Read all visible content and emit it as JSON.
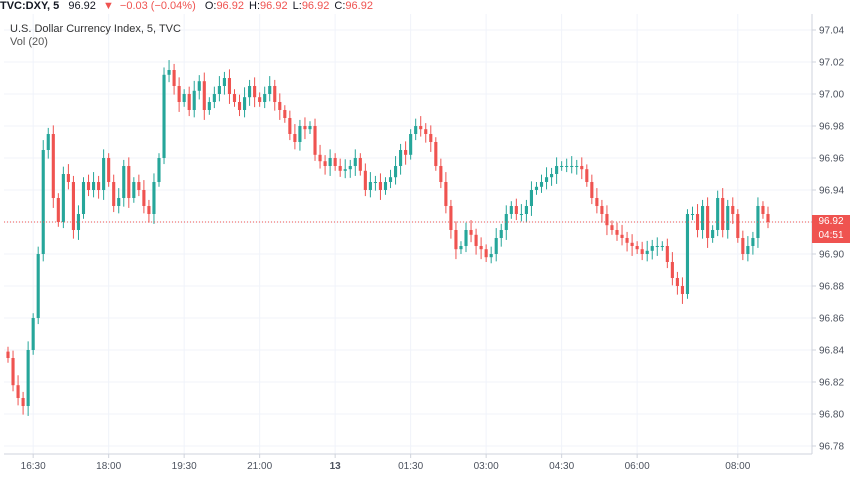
{
  "header": {
    "symbol": "TVC:DXY, 5",
    "last": "96.92",
    "down_arrow": "▼",
    "change": "−0.03 (−0.04%)",
    "o_label": "O:",
    "o_value": "96.92",
    "h_label": "H:",
    "h_value": "96.92",
    "l_label": "L:",
    "l_value": "96.92",
    "c_label": "C:",
    "c_value": "96.92"
  },
  "legend": {
    "title": "U.S. Dollar Currency Index, 5, TVC",
    "volume": "Vol (20)"
  },
  "price_badge": {
    "price": "96.92",
    "countdown": "04:51"
  },
  "colors": {
    "up": "#26a69a",
    "down": "#ef5350",
    "grid": "#f0f3fa",
    "axis_text": "#4c525e",
    "price_line": "#ef5350"
  },
  "chart_data": {
    "type": "candlestick",
    "title": "U.S. Dollar Currency Index, 5, TVC",
    "x_tick_labels": [
      "16:30",
      "18:00",
      "19:30",
      "21:00",
      "13",
      "01:30",
      "03:00",
      "04:30",
      "06:00",
      "08:00"
    ],
    "y_tick_labels": [
      "96.78",
      "96.80",
      "96.82",
      "96.84",
      "96.86",
      "96.88",
      "96.90",
      "96.92",
      "96.94",
      "96.96",
      "96.98",
      "97.00",
      "97.02",
      "97.04"
    ],
    "ylim": [
      96.775,
      97.05
    ],
    "current_price": 96.92,
    "grid": true,
    "closes": [
      96.835,
      96.818,
      96.81,
      96.805,
      96.84,
      96.86,
      96.9,
      96.965,
      96.975,
      96.935,
      96.92,
      96.95,
      96.945,
      96.915,
      96.925,
      96.945,
      96.94,
      96.945,
      96.94,
      96.96,
      96.945,
      96.93,
      96.935,
      96.955,
      96.935,
      96.945,
      96.94,
      96.93,
      96.925,
      96.945,
      96.96,
      97.012,
      97.015,
      97.005,
      96.995,
      97.0,
      96.99,
      97.002,
      97.008,
      96.99,
      96.995,
      97.0,
      97.005,
      97.01,
      97.0,
      96.995,
      96.99,
      96.998,
      97.005,
      96.998,
      96.995,
      97.0,
      97.005,
      96.995,
      96.99,
      96.985,
      96.975,
      96.97,
      96.98,
      96.978,
      96.98,
      96.962,
      96.958,
      96.955,
      96.96,
      96.955,
      96.952,
      96.953,
      96.955,
      96.96,
      96.952,
      96.94,
      96.945,
      96.945,
      96.94,
      96.945,
      96.948,
      96.955,
      96.965,
      96.962,
      96.975,
      96.98,
      96.978,
      96.975,
      96.97,
      96.955,
      96.945,
      96.93,
      96.915,
      96.903,
      96.905,
      96.915,
      96.912,
      96.905,
      96.903,
      96.898,
      96.9,
      96.91,
      96.915,
      96.925,
      96.93,
      96.925,
      96.925,
      96.93,
      96.94,
      96.942,
      96.945,
      96.948,
      96.95,
      96.955,
      96.955,
      96.955,
      96.955,
      96.955,
      96.953,
      96.945,
      96.935,
      96.93,
      96.925,
      96.918,
      96.915,
      96.912,
      96.91,
      96.907,
      96.905,
      96.903,
      96.9,
      96.902,
      96.905,
      96.905,
      96.905,
      96.895,
      96.885,
      96.88,
      96.875,
      96.925,
      96.925,
      96.915,
      96.93,
      96.91,
      96.915,
      96.935,
      96.915,
      96.93,
      96.925,
      96.91,
      96.9,
      96.905,
      96.91,
      96.93,
      96.925,
      96.92
    ]
  }
}
